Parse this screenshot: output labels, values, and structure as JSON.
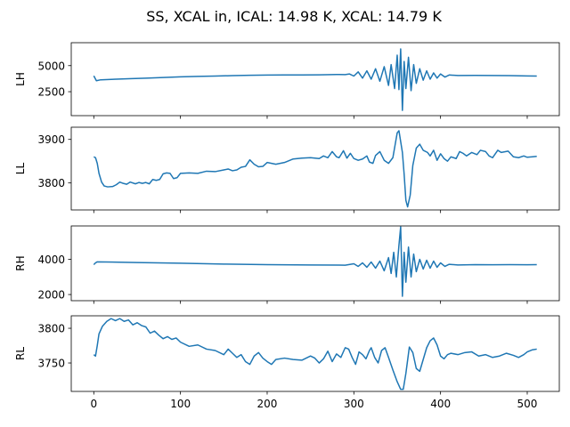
{
  "chart_data": {
    "type": "line",
    "title": "SS, XCAL in, ICAL: 14.98 K, XCAL: 14.79 K",
    "line_color": "#1f77b4",
    "grid": false,
    "x_range": [
      -26,
      537
    ],
    "x_ticks": [
      0,
      100,
      200,
      300,
      400,
      500
    ],
    "x_tick_labels": [
      "0",
      "100",
      "200",
      "300",
      "400",
      "500"
    ],
    "panels": [
      {
        "ylabel": "LH",
        "ylim": [
          200,
          7200
        ],
        "y_ticks": [
          2500,
          5000
        ],
        "y_tick_labels": [
          "2500",
          "5000"
        ],
        "points": [
          [
            0,
            4020
          ],
          [
            3,
            3550
          ],
          [
            8,
            3640
          ],
          [
            20,
            3680
          ],
          [
            40,
            3740
          ],
          [
            60,
            3800
          ],
          [
            80,
            3860
          ],
          [
            100,
            3920
          ],
          [
            120,
            3970
          ],
          [
            140,
            4000
          ],
          [
            160,
            4040
          ],
          [
            180,
            4070
          ],
          [
            200,
            4090
          ],
          [
            220,
            4100
          ],
          [
            240,
            4110
          ],
          [
            260,
            4120
          ],
          [
            280,
            4150
          ],
          [
            290,
            4140
          ],
          [
            295,
            4200
          ],
          [
            300,
            4000
          ],
          [
            305,
            4400
          ],
          [
            310,
            3800
          ],
          [
            315,
            4500
          ],
          [
            320,
            3700
          ],
          [
            325,
            4700
          ],
          [
            330,
            3500
          ],
          [
            335,
            4900
          ],
          [
            340,
            3100
          ],
          [
            343,
            5100
          ],
          [
            347,
            2800
          ],
          [
            350,
            6000
          ],
          [
            352,
            2700
          ],
          [
            354,
            6600
          ],
          [
            356,
            700
          ],
          [
            358,
            5400
          ],
          [
            360,
            2800
          ],
          [
            363,
            5800
          ],
          [
            366,
            2600
          ],
          [
            369,
            5100
          ],
          [
            372,
            3300
          ],
          [
            376,
            4700
          ],
          [
            380,
            3600
          ],
          [
            384,
            4500
          ],
          [
            388,
            3700
          ],
          [
            392,
            4300
          ],
          [
            396,
            3800
          ],
          [
            400,
            4200
          ],
          [
            405,
            3900
          ],
          [
            410,
            4100
          ],
          [
            420,
            4050
          ],
          [
            440,
            4060
          ],
          [
            460,
            4050
          ],
          [
            480,
            4040
          ],
          [
            500,
            4010
          ],
          [
            511,
            4000
          ]
        ]
      },
      {
        "ylabel": "LL",
        "ylim": [
          3738,
          3928
        ],
        "y_ticks": [
          3800,
          3900
        ],
        "y_tick_labels": [
          "3800",
          "3900"
        ],
        "points": [
          [
            0,
            3860
          ],
          [
            2,
            3858
          ],
          [
            4,
            3845
          ],
          [
            6,
            3822
          ],
          [
            9,
            3802
          ],
          [
            12,
            3793
          ],
          [
            16,
            3791
          ],
          [
            22,
            3792
          ],
          [
            26,
            3796
          ],
          [
            30,
            3802
          ],
          [
            34,
            3799
          ],
          [
            38,
            3797
          ],
          [
            42,
            3802
          ],
          [
            48,
            3798
          ],
          [
            52,
            3801
          ],
          [
            56,
            3799
          ],
          [
            60,
            3801
          ],
          [
            64,
            3798
          ],
          [
            68,
            3808
          ],
          [
            72,
            3806
          ],
          [
            76,
            3808
          ],
          [
            80,
            3821
          ],
          [
            84,
            3823
          ],
          [
            88,
            3822
          ],
          [
            92,
            3810
          ],
          [
            96,
            3812
          ],
          [
            100,
            3822
          ],
          [
            110,
            3823
          ],
          [
            120,
            3822
          ],
          [
            130,
            3827
          ],
          [
            140,
            3826
          ],
          [
            150,
            3830
          ],
          [
            155,
            3832
          ],
          [
            160,
            3828
          ],
          [
            165,
            3830
          ],
          [
            170,
            3836
          ],
          [
            175,
            3838
          ],
          [
            180,
            3853
          ],
          [
            185,
            3843
          ],
          [
            190,
            3837
          ],
          [
            195,
            3838
          ],
          [
            200,
            3847
          ],
          [
            205,
            3845
          ],
          [
            210,
            3843
          ],
          [
            220,
            3847
          ],
          [
            230,
            3855
          ],
          [
            240,
            3857
          ],
          [
            250,
            3858
          ],
          [
            260,
            3856
          ],
          [
            265,
            3862
          ],
          [
            270,
            3858
          ],
          [
            275,
            3872
          ],
          [
            280,
            3860
          ],
          [
            283,
            3858
          ],
          [
            288,
            3874
          ],
          [
            292,
            3857
          ],
          [
            296,
            3868
          ],
          [
            300,
            3856
          ],
          [
            305,
            3852
          ],
          [
            310,
            3855
          ],
          [
            315,
            3862
          ],
          [
            318,
            3848
          ],
          [
            322,
            3845
          ],
          [
            325,
            3863
          ],
          [
            330,
            3872
          ],
          [
            335,
            3852
          ],
          [
            340,
            3845
          ],
          [
            345,
            3858
          ],
          [
            350,
            3915
          ],
          [
            352,
            3920
          ],
          [
            356,
            3870
          ],
          [
            358,
            3820
          ],
          [
            360,
            3760
          ],
          [
            362,
            3745
          ],
          [
            365,
            3772
          ],
          [
            368,
            3840
          ],
          [
            372,
            3880
          ],
          [
            376,
            3889
          ],
          [
            380,
            3875
          ],
          [
            385,
            3870
          ],
          [
            388,
            3862
          ],
          [
            392,
            3875
          ],
          [
            396,
            3852
          ],
          [
            400,
            3867
          ],
          [
            404,
            3856
          ],
          [
            408,
            3850
          ],
          [
            412,
            3860
          ],
          [
            418,
            3856
          ],
          [
            422,
            3872
          ],
          [
            426,
            3868
          ],
          [
            430,
            3862
          ],
          [
            436,
            3870
          ],
          [
            442,
            3865
          ],
          [
            446,
            3875
          ],
          [
            452,
            3872
          ],
          [
            456,
            3862
          ],
          [
            460,
            3858
          ],
          [
            466,
            3875
          ],
          [
            470,
            3870
          ],
          [
            478,
            3873
          ],
          [
            484,
            3860
          ],
          [
            490,
            3858
          ],
          [
            496,
            3862
          ],
          [
            500,
            3859
          ],
          [
            506,
            3860
          ],
          [
            511,
            3861
          ]
        ]
      },
      {
        "ylabel": "RH",
        "ylim": [
          1650,
          5900
        ],
        "y_ticks": [
          2000,
          4000
        ],
        "y_tick_labels": [
          "2000",
          "4000"
        ],
        "points": [
          [
            0,
            3700
          ],
          [
            2,
            3800
          ],
          [
            4,
            3860
          ],
          [
            50,
            3820
          ],
          [
            100,
            3780
          ],
          [
            150,
            3730
          ],
          [
            200,
            3700
          ],
          [
            250,
            3680
          ],
          [
            290,
            3670
          ],
          [
            300,
            3750
          ],
          [
            305,
            3600
          ],
          [
            310,
            3800
          ],
          [
            315,
            3550
          ],
          [
            320,
            3850
          ],
          [
            325,
            3500
          ],
          [
            330,
            3900
          ],
          [
            335,
            3350
          ],
          [
            340,
            4100
          ],
          [
            343,
            3200
          ],
          [
            346,
            4400
          ],
          [
            349,
            3000
          ],
          [
            352,
            4800
          ],
          [
            354,
            5850
          ],
          [
            356,
            1900
          ],
          [
            358,
            4400
          ],
          [
            360,
            2700
          ],
          [
            363,
            4700
          ],
          [
            366,
            3000
          ],
          [
            369,
            4300
          ],
          [
            372,
            3300
          ],
          [
            376,
            4000
          ],
          [
            380,
            3450
          ],
          [
            384,
            3950
          ],
          [
            388,
            3500
          ],
          [
            392,
            3900
          ],
          [
            396,
            3550
          ],
          [
            400,
            3800
          ],
          [
            405,
            3600
          ],
          [
            410,
            3720
          ],
          [
            420,
            3680
          ],
          [
            440,
            3700
          ],
          [
            460,
            3690
          ],
          [
            480,
            3700
          ],
          [
            500,
            3690
          ],
          [
            511,
            3700
          ]
        ]
      },
      {
        "ylabel": "RL",
        "ylim": [
          3709,
          3818
        ],
        "y_ticks": [
          3750,
          3800
        ],
        "y_tick_labels": [
          "3750",
          "3800"
        ],
        "points": [
          [
            0,
            3762
          ],
          [
            2,
            3760
          ],
          [
            4,
            3775
          ],
          [
            6,
            3792
          ],
          [
            10,
            3803
          ],
          [
            15,
            3810
          ],
          [
            20,
            3814
          ],
          [
            25,
            3811
          ],
          [
            30,
            3814
          ],
          [
            35,
            3810
          ],
          [
            40,
            3812
          ],
          [
            45,
            3805
          ],
          [
            50,
            3808
          ],
          [
            55,
            3804
          ],
          [
            60,
            3802
          ],
          [
            65,
            3793
          ],
          [
            70,
            3796
          ],
          [
            75,
            3790
          ],
          [
            80,
            3785
          ],
          [
            85,
            3788
          ],
          [
            90,
            3784
          ],
          [
            95,
            3786
          ],
          [
            100,
            3780
          ],
          [
            110,
            3774
          ],
          [
            120,
            3776
          ],
          [
            130,
            3770
          ],
          [
            140,
            3768
          ],
          [
            150,
            3762
          ],
          [
            155,
            3770
          ],
          [
            160,
            3764
          ],
          [
            165,
            3758
          ],
          [
            170,
            3762
          ],
          [
            175,
            3752
          ],
          [
            180,
            3748
          ],
          [
            185,
            3760
          ],
          [
            190,
            3765
          ],
          [
            195,
            3757
          ],
          [
            200,
            3752
          ],
          [
            205,
            3748
          ],
          [
            210,
            3755
          ],
          [
            220,
            3757
          ],
          [
            230,
            3755
          ],
          [
            240,
            3754
          ],
          [
            250,
            3760
          ],
          [
            255,
            3757
          ],
          [
            260,
            3750
          ],
          [
            265,
            3756
          ],
          [
            270,
            3767
          ],
          [
            275,
            3752
          ],
          [
            280,
            3763
          ],
          [
            285,
            3758
          ],
          [
            290,
            3772
          ],
          [
            294,
            3770
          ],
          [
            298,
            3758
          ],
          [
            302,
            3748
          ],
          [
            306,
            3766
          ],
          [
            310,
            3762
          ],
          [
            314,
            3756
          ],
          [
            318,
            3768
          ],
          [
            320,
            3772
          ],
          [
            324,
            3758
          ],
          [
            328,
            3750
          ],
          [
            332,
            3768
          ],
          [
            336,
            3772
          ],
          [
            340,
            3758
          ],
          [
            345,
            3740
          ],
          [
            350,
            3723
          ],
          [
            354,
            3712
          ],
          [
            357,
            3712
          ],
          [
            360,
            3735
          ],
          [
            364,
            3773
          ],
          [
            368,
            3765
          ],
          [
            372,
            3742
          ],
          [
            376,
            3738
          ],
          [
            380,
            3755
          ],
          [
            384,
            3772
          ],
          [
            388,
            3782
          ],
          [
            392,
            3786
          ],
          [
            396,
            3776
          ],
          [
            400,
            3760
          ],
          [
            404,
            3756
          ],
          [
            408,
            3762
          ],
          [
            412,
            3764
          ],
          [
            420,
            3762
          ],
          [
            428,
            3765
          ],
          [
            436,
            3766
          ],
          [
            444,
            3760
          ],
          [
            452,
            3762
          ],
          [
            460,
            3758
          ],
          [
            468,
            3760
          ],
          [
            476,
            3764
          ],
          [
            484,
            3761
          ],
          [
            490,
            3758
          ],
          [
            496,
            3762
          ],
          [
            500,
            3766
          ],
          [
            506,
            3769
          ],
          [
            511,
            3770
          ]
        ]
      }
    ]
  }
}
